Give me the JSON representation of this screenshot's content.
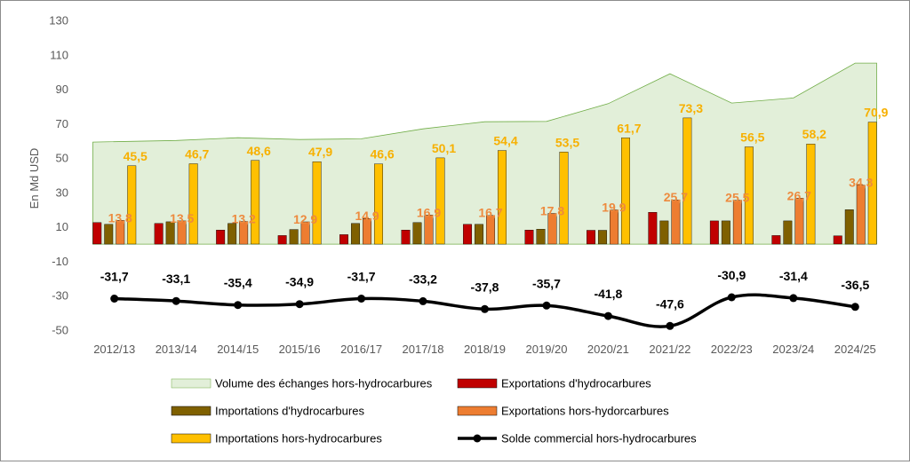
{
  "chart_data": {
    "type": "bar",
    "ylabel": "En Md USD",
    "ylim": [
      -50,
      130
    ],
    "yticks": [
      130,
      110,
      90,
      70,
      50,
      30,
      10,
      -10,
      -30,
      -50
    ],
    "grid": false,
    "legend_position": "bottom",
    "categories": [
      "2012/13",
      "2013/14",
      "2014/15",
      "2015/16",
      "2016/17",
      "2017/18",
      "2018/19",
      "2019/20",
      "2020/21",
      "2021/22",
      "2022/23",
      "2023/24",
      "2024/25"
    ],
    "series": [
      {
        "name": "Volume des échanges hors-hydrocarbures",
        "kind": "area",
        "color": "#e2efd9",
        "values": [
          59.3,
          60.2,
          61.8,
          60.8,
          61.2,
          67.0,
          71.1,
          71.3,
          81.6,
          99.0,
          82.0,
          84.9,
          105.2
        ]
      },
      {
        "name": "Exportations d'hydrocarbures",
        "kind": "bar",
        "color": "#c00000",
        "values": [
          12.5,
          12.0,
          8.2,
          5.0,
          5.5,
          8.2,
          11.5,
          8.2,
          8.0,
          18.5,
          13.5,
          5.0,
          4.8
        ]
      },
      {
        "name": "Importations d'hydrocarbures",
        "kind": "bar",
        "color": "#7f6000",
        "values": [
          11.5,
          13.0,
          12.0,
          8.5,
          12.0,
          12.5,
          11.5,
          8.7,
          8.0,
          13.5,
          13.5,
          13.5,
          20.0
        ]
      },
      {
        "name": "Exportations hors-hydorcarbures",
        "kind": "bar",
        "color": "#ed7d31",
        "label_color": "#ed8a3e",
        "values": [
          13.8,
          13.5,
          13.2,
          12.9,
          14.9,
          16.9,
          16.7,
          17.8,
          19.9,
          25.7,
          25.5,
          26.7,
          34.3
        ],
        "labels": [
          "13,8",
          "13,5",
          "13,2",
          "12,9",
          "14,9",
          "16,9",
          "16,7",
          "17,8",
          "19,9",
          "25,7",
          "25,5",
          "26,7",
          "34,3"
        ]
      },
      {
        "name": "Importations hors-hydrocarbures",
        "kind": "bar",
        "color": "#ffc000",
        "label_color": "#f7b000",
        "values": [
          45.5,
          46.7,
          48.6,
          47.9,
          46.6,
          50.1,
          54.4,
          53.5,
          61.7,
          73.3,
          56.5,
          58.2,
          70.9
        ],
        "labels": [
          "45,5",
          "46,7",
          "48,6",
          "47,9",
          "46,6",
          "50,1",
          "54,4",
          "53,5",
          "61,7",
          "73,3",
          "56,5",
          "58,2",
          "70,9"
        ]
      },
      {
        "name": "Solde commercial hors-hydrocarbures",
        "kind": "line",
        "color": "#000000",
        "values": [
          -31.7,
          -33.1,
          -35.4,
          -34.9,
          -31.7,
          -33.2,
          -37.8,
          -35.7,
          -41.8,
          -47.6,
          -30.9,
          -31.4,
          -36.5
        ],
        "labels": [
          "-31,7",
          "-33,1",
          "-35,4",
          "-34,9",
          "-31,7",
          "-33,2",
          "-37,8",
          "-35,7",
          "-41,8",
          "-47,6",
          "-30,9",
          "-31,4",
          "-36,5"
        ]
      }
    ]
  }
}
